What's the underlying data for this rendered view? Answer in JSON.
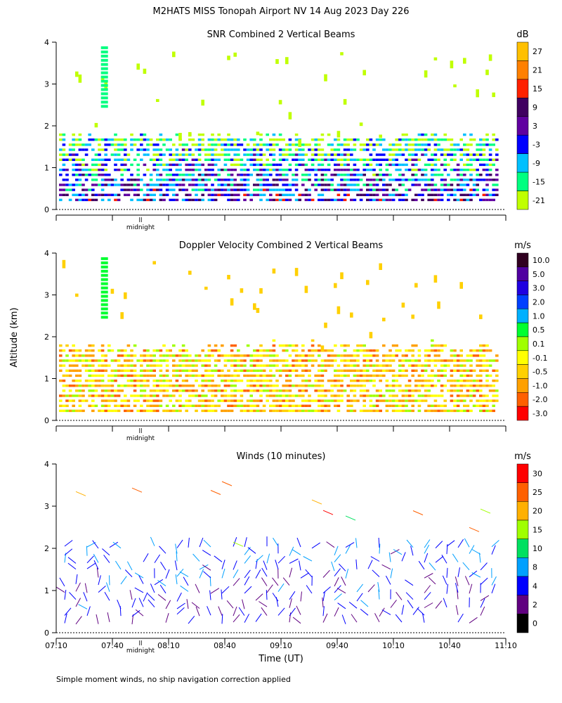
{
  "title": "M2HATS MISS Tonopah Airport NV  14 Aug 2023 Day 226",
  "footnote": "Simple moment winds, no ship navigation correction applied",
  "shared": {
    "ylabel": "Altitude (km)",
    "xlabel": "Time (UT)",
    "midnight_label": "midnight",
    "midnight_mark": "ll",
    "x_ticks": [
      "07:10",
      "07:40",
      "08:10",
      "08:40",
      "09:10",
      "09:40",
      "10:10",
      "10:40",
      "11:10"
    ],
    "y_ticks": [
      "0",
      "1",
      "2",
      "3",
      "4"
    ]
  },
  "chart_data": [
    {
      "type": "heatmap",
      "title": "SNR Combined 2 Vertical Beams",
      "colorbar_unit": "dB",
      "colorbar_labels": [
        "27",
        "21",
        "15",
        "9",
        "3",
        "-3",
        "-9",
        "-15",
        "-21"
      ],
      "colorbar_colors": [
        "#ffc000",
        "#ff8000",
        "#ff2000",
        "#400060",
        "#6000a0",
        "#0000ff",
        "#00c0ff",
        "#00ff80",
        "#c0ff00"
      ],
      "xlim": [
        "07:10",
        "11:10"
      ],
      "ylim": [
        0,
        4
      ],
      "grid": false
    },
    {
      "type": "heatmap",
      "title": "Doppler Velocity Combined 2 Vertical Beams",
      "colorbar_unit": "m/s",
      "colorbar_labels": [
        "10.0",
        "5.0",
        "3.0",
        "2.0",
        "1.0",
        "0.5",
        "0.1",
        "-0.1",
        "-0.5",
        "-1.0",
        "-2.0",
        "-3.0"
      ],
      "colorbar_colors": [
        "#300020",
        "#5000a0",
        "#2000e0",
        "#0040ff",
        "#00b0ff",
        "#00ff30",
        "#a0ff00",
        "#ffff00",
        "#ffd000",
        "#ffa000",
        "#ff6000",
        "#ff0000"
      ],
      "xlim": [
        "07:10",
        "11:10"
      ],
      "ylim": [
        0,
        4
      ],
      "grid": false
    },
    {
      "type": "scatter",
      "title": "Winds (10 minutes)",
      "colorbar_unit": "m/s",
      "colorbar_labels": [
        "30",
        "25",
        "20",
        "15",
        "10",
        "8",
        "4",
        "2",
        "0"
      ],
      "colorbar_colors": [
        "#ff0000",
        "#ff6000",
        "#ffb000",
        "#a0ff00",
        "#00e060",
        "#00a0ff",
        "#0000ff",
        "#600080",
        "#000000"
      ],
      "xlim": [
        "07:10",
        "11:10"
      ],
      "ylim": [
        0,
        4
      ],
      "grid": false
    }
  ]
}
